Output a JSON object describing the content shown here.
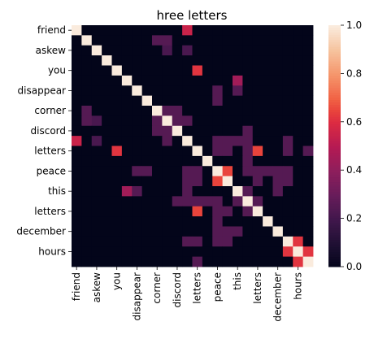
{
  "chart_data": {
    "type": "heatmap",
    "title": "hree letters",
    "xlabel": "",
    "ylabel": "",
    "row_labels": [
      "friend",
      "",
      "askew",
      "",
      "you",
      "",
      "disappear",
      "",
      "corner",
      "",
      "discord",
      "",
      "letters",
      "",
      "peace",
      "",
      "this",
      "",
      "letters",
      "",
      "december",
      "",
      "hours",
      ""
    ],
    "col_labels": [
      "friend",
      "",
      "askew",
      "",
      "you",
      "",
      "disappear",
      "",
      "corner",
      "",
      "discord",
      "",
      "letters",
      "",
      "peace",
      "",
      "this",
      "",
      "letters",
      "",
      "december",
      "",
      "hours",
      ""
    ],
    "values": [
      [
        1,
        0,
        0,
        0,
        0,
        0,
        0,
        0,
        0,
        0,
        0,
        0,
        0,
        0,
        0,
        0,
        0,
        0,
        0,
        0,
        0,
        0,
        0,
        0
      ],
      [
        0,
        1,
        0,
        0,
        0,
        0,
        0,
        0,
        0,
        0,
        0,
        0,
        0,
        0,
        0,
        0,
        0,
        0,
        0,
        0,
        0,
        0,
        0,
        0
      ],
      [
        0,
        0,
        1,
        0,
        0,
        0,
        0,
        0,
        0,
        0,
        0,
        0,
        0,
        0,
        0,
        0,
        0,
        0,
        0,
        0,
        0,
        0,
        0,
        0
      ],
      [
        0,
        0,
        0,
        1,
        0,
        0,
        0,
        0,
        0,
        0,
        0,
        0,
        0,
        0,
        0,
        0,
        0,
        0,
        0,
        0,
        0,
        0,
        0,
        0
      ],
      [
        0,
        0,
        0,
        0,
        1,
        0,
        0,
        0,
        0,
        0,
        0,
        0,
        0,
        0,
        0,
        0,
        0,
        0,
        0,
        0,
        0,
        0,
        0,
        0
      ],
      [
        0,
        0,
        0,
        0,
        0,
        1,
        0,
        0,
        0,
        0,
        0,
        0,
        0,
        0,
        0,
        0,
        0,
        0,
        0,
        0,
        0,
        0,
        0,
        0
      ],
      [
        0,
        0,
        0,
        0,
        0,
        0,
        1,
        0,
        0,
        0,
        0,
        0,
        0,
        0,
        0,
        0,
        0,
        0,
        0,
        0,
        0,
        0,
        0,
        0
      ],
      [
        0,
        0,
        0,
        0,
        0,
        0,
        0,
        1,
        0,
        0,
        0,
        0,
        0,
        0,
        0,
        0,
        0,
        0,
        0,
        0,
        0,
        0,
        0,
        0
      ],
      [
        0,
        0,
        0,
        0,
        0,
        0,
        0,
        0,
        1,
        0,
        0,
        0,
        0,
        0,
        0,
        0,
        0,
        0,
        0,
        0,
        0,
        0,
        0,
        0
      ],
      [
        0,
        0,
        0,
        0,
        0,
        0,
        0,
        0,
        0,
        1,
        0,
        0,
        0,
        0,
        0,
        0,
        0,
        0,
        0,
        0,
        0,
        0,
        0,
        0
      ],
      [
        0,
        0,
        0,
        0,
        0,
        0,
        0,
        0,
        0,
        0,
        1,
        0,
        0,
        0,
        0,
        0,
        0,
        0,
        0,
        0,
        0,
        0,
        0,
        0
      ],
      [
        0,
        0,
        0,
        0,
        0,
        0,
        0,
        0,
        0,
        0,
        0,
        1,
        0,
        0,
        0,
        0,
        0,
        0,
        0,
        0,
        0,
        0,
        0,
        0
      ],
      [
        0,
        0,
        0,
        0,
        0,
        0,
        0,
        0,
        0,
        0,
        0,
        0,
        1,
        0,
        0,
        0,
        0,
        0,
        0,
        0,
        0,
        0,
        0,
        0
      ],
      [
        0,
        0,
        0,
        0,
        0,
        0,
        0,
        0,
        0,
        0,
        0,
        0,
        0,
        1,
        0,
        0,
        0,
        0,
        0,
        0,
        0,
        0,
        0,
        0
      ],
      [
        0,
        0,
        0,
        0,
        0,
        0,
        0,
        0,
        0,
        0,
        0,
        0,
        0,
        0,
        1,
        0,
        0,
        0,
        0,
        0,
        0,
        0,
        0,
        0
      ],
      [
        0,
        0,
        0,
        0,
        0,
        0,
        0,
        0,
        0,
        0,
        0,
        0,
        0,
        0,
        0,
        1,
        0,
        0,
        0,
        0,
        0,
        0,
        0,
        0
      ],
      [
        0,
        0,
        0,
        0,
        0,
        0,
        0,
        0,
        0,
        0,
        0,
        0,
        0,
        0,
        0,
        0,
        1,
        0,
        0,
        0,
        0,
        0,
        0,
        0
      ],
      [
        0,
        0,
        0,
        0,
        0,
        0,
        0,
        0,
        0,
        0,
        0,
        0,
        0,
        0,
        0,
        0,
        0,
        1,
        0,
        0,
        0,
        0,
        0,
        0
      ],
      [
        0,
        0,
        0,
        0,
        0,
        0,
        0,
        0,
        0,
        0,
        0,
        0,
        0,
        0,
        0,
        0,
        0,
        0,
        1,
        0,
        0,
        0,
        0,
        0
      ],
      [
        0,
        0,
        0,
        0,
        0,
        0,
        0,
        0,
        0,
        0,
        0,
        0,
        0,
        0,
        0,
        0,
        0,
        0,
        0,
        1,
        0,
        0,
        0,
        0
      ],
      [
        0,
        0,
        0,
        0,
        0,
        0,
        0,
        0,
        0,
        0,
        0,
        0,
        0,
        0,
        0,
        0,
        0,
        0,
        0,
        0,
        1,
        0,
        0,
        0
      ],
      [
        0,
        0,
        0,
        0,
        0,
        0,
        0,
        0,
        0,
        0,
        0,
        0,
        0,
        0,
        0,
        0,
        0,
        0,
        0,
        0,
        0,
        1,
        0,
        0
      ],
      [
        0,
        0,
        0,
        0,
        0,
        0,
        0,
        0,
        0,
        0,
        0,
        0,
        0,
        0,
        0,
        0,
        0,
        0,
        0,
        0,
        0,
        0,
        1,
        0
      ],
      [
        0,
        0,
        0,
        0,
        0,
        0,
        0,
        0,
        0,
        0,
        0,
        0,
        0,
        0,
        0,
        0,
        0,
        0,
        0,
        0,
        0,
        0,
        0,
        1
      ]
    ],
    "off_diagonal": [
      [
        0,
        11,
        0.55
      ],
      [
        1,
        8,
        0.2
      ],
      [
        1,
        10,
        0.2
      ],
      [
        2,
        15,
        0.2
      ],
      [
        3,
        7,
        0.45
      ],
      [
        4,
        14,
        0.2
      ],
      [
        5,
        1,
        0.2
      ],
      [
        5,
        12,
        0.2
      ],
      [
        6,
        13,
        0.2
      ],
      [
        6,
        14,
        0.2
      ],
      [
        7,
        12,
        0.2
      ],
      [
        8,
        15,
        0.2
      ],
      [
        9,
        10,
        0.2
      ],
      [
        10,
        12,
        0.2
      ],
      [
        11,
        13,
        0.2
      ],
      [
        12,
        13,
        0.2
      ],
      [
        13,
        12,
        0.2
      ],
      [
        14,
        15,
        0.2
      ],
      [
        15,
        14,
        0.2
      ],
      [
        16,
        14,
        0.2
      ],
      [
        17,
        18,
        0.2
      ],
      [
        18,
        14,
        0.2
      ],
      [
        19,
        20,
        0.2
      ],
      [
        20,
        22,
        0.2
      ],
      [
        21,
        14,
        0.2
      ],
      [
        22,
        23,
        0.2
      ],
      [
        23,
        14,
        0.2
      ]
    ],
    "colorbar": {
      "ticks": [
        0.0,
        0.2,
        0.4,
        0.6,
        0.8,
        1.0
      ],
      "tick_labels": [
        "0.0",
        "0.2",
        "0.4",
        "0.6",
        "0.8",
        "1.0"
      ],
      "range": [
        0,
        1
      ]
    },
    "colormap": "rocket"
  }
}
